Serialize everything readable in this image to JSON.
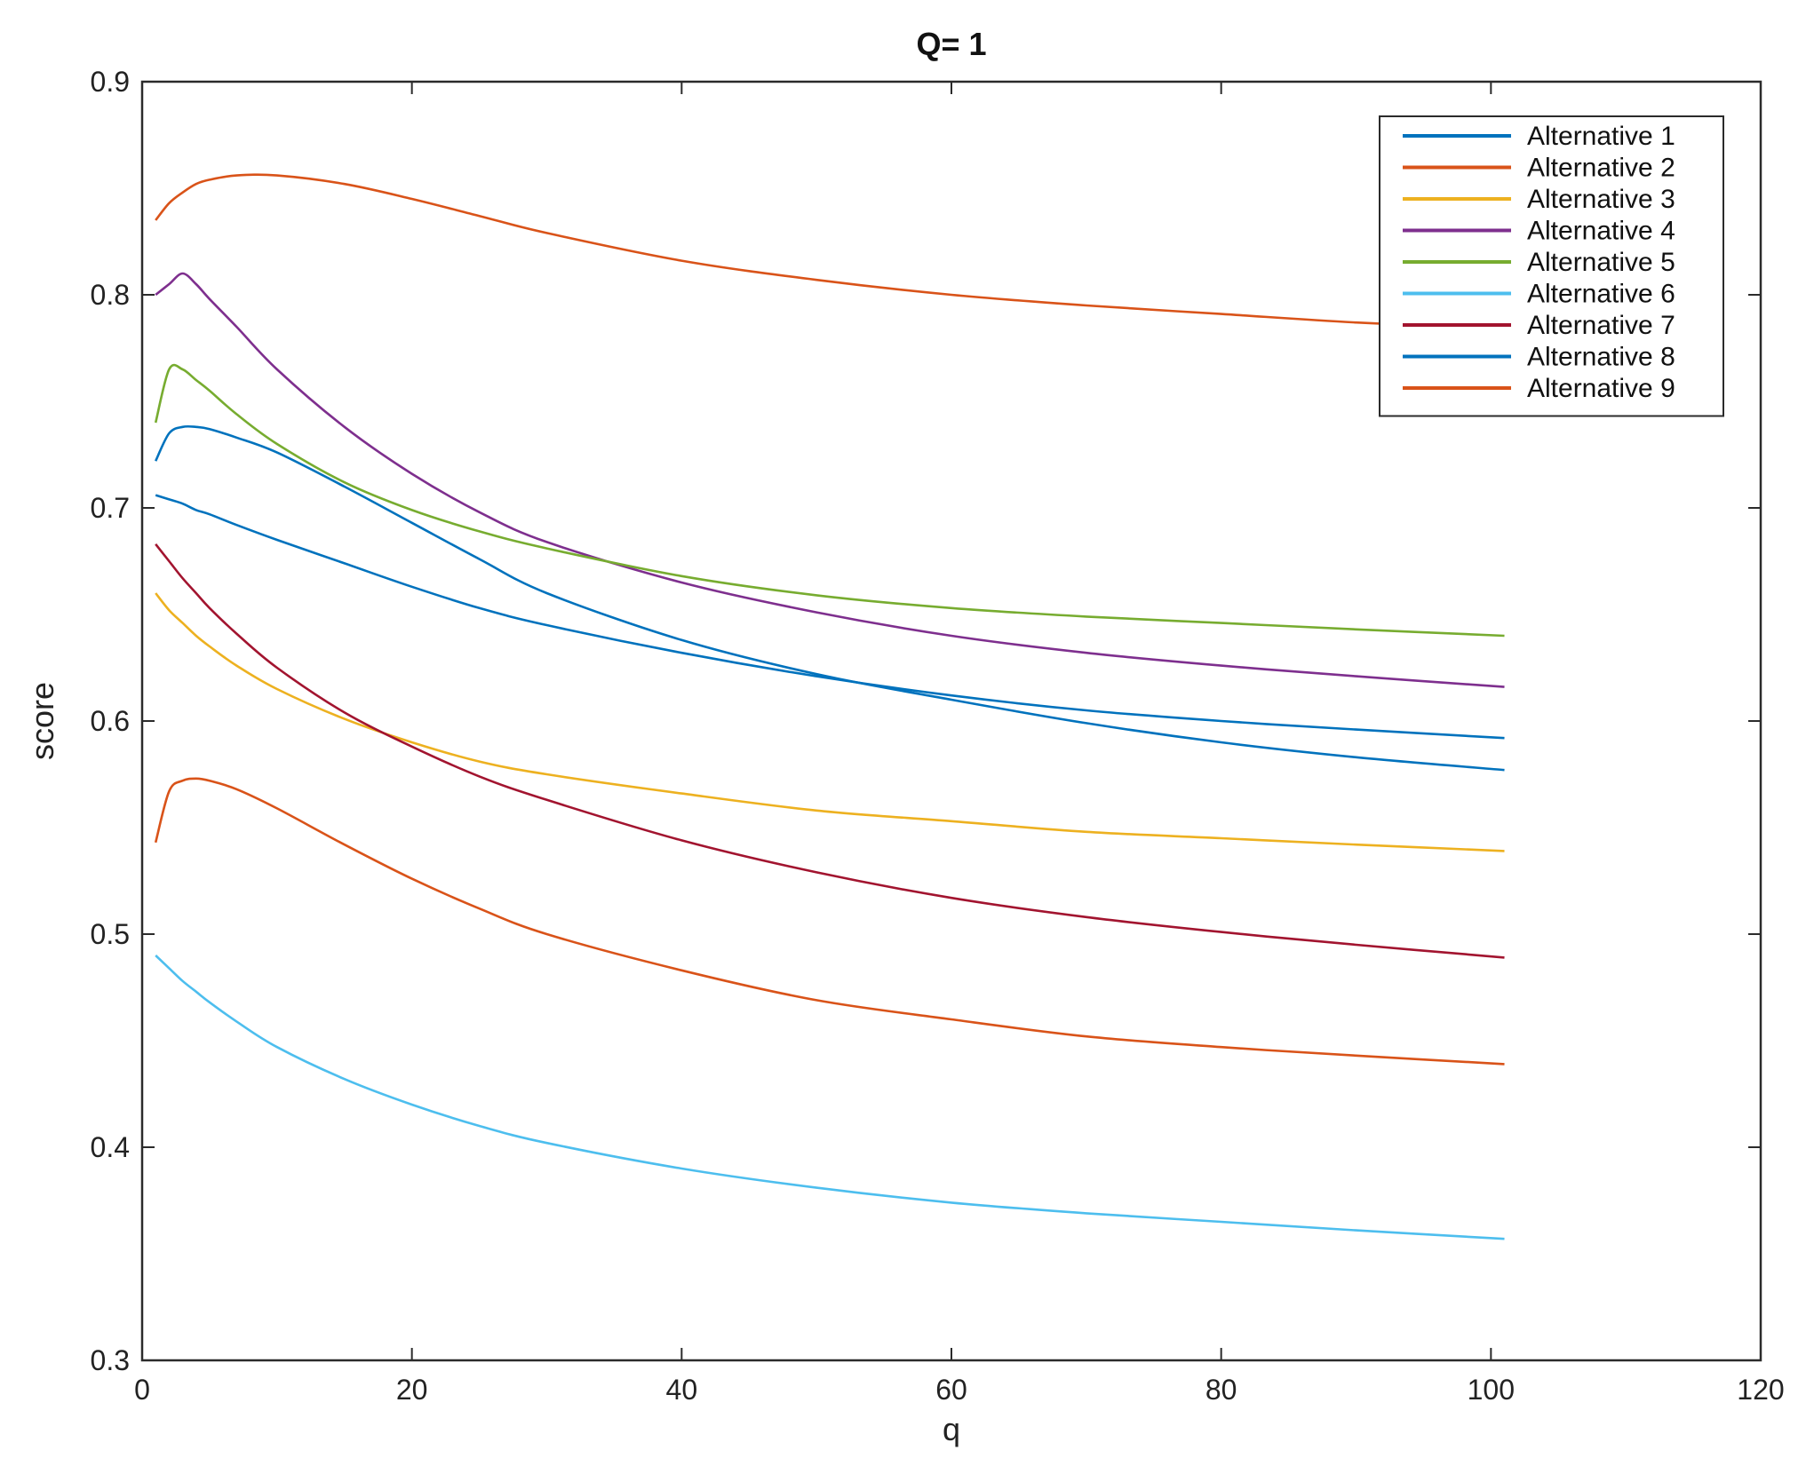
{
  "chart_data": {
    "type": "line",
    "title": "Q= 1",
    "xlabel": "q",
    "ylabel": "score",
    "xlim": [
      0,
      120
    ],
    "ylim": [
      0.3,
      0.9
    ],
    "xticks": [
      0,
      20,
      40,
      60,
      80,
      100,
      120
    ],
    "yticks": [
      0.3,
      0.4,
      0.5,
      0.6,
      0.7,
      0.8,
      0.9
    ],
    "xtick_labels": [
      "0",
      "20",
      "40",
      "60",
      "80",
      "100",
      "120"
    ],
    "ytick_labels": [
      "0.3",
      "0.4",
      "0.5",
      "0.6",
      "0.7",
      "0.8",
      "0.9"
    ],
    "grid": false,
    "legend_position": "top-right",
    "x": [
      1,
      2,
      3,
      4,
      5,
      7,
      10,
      15,
      20,
      25,
      30,
      40,
      50,
      60,
      70,
      80,
      90,
      101
    ],
    "series": [
      {
        "name": "Alternative 1",
        "color": "#0072BD",
        "values": [
          0.706,
          0.704,
          0.702,
          0.699,
          0.697,
          0.692,
          0.685,
          0.674,
          0.663,
          0.653,
          0.645,
          0.632,
          0.621,
          0.612,
          0.605,
          0.6,
          0.596,
          0.592
        ]
      },
      {
        "name": "Alternative 2",
        "color": "#D95319",
        "values": [
          0.543,
          0.567,
          0.572,
          0.573,
          0.572,
          0.568,
          0.559,
          0.542,
          0.526,
          0.512,
          0.5,
          0.483,
          0.469,
          0.46,
          0.452,
          0.447,
          0.443,
          0.439
        ]
      },
      {
        "name": "Alternative 3",
        "color": "#EDB120",
        "values": [
          0.66,
          0.652,
          0.646,
          0.64,
          0.635,
          0.626,
          0.615,
          0.601,
          0.59,
          0.581,
          0.575,
          0.566,
          0.558,
          0.553,
          0.548,
          0.545,
          0.542,
          0.539
        ]
      },
      {
        "name": "Alternative 4",
        "color": "#7E2F8E",
        "values": [
          0.8,
          0.805,
          0.81,
          0.805,
          0.798,
          0.785,
          0.765,
          0.738,
          0.716,
          0.698,
          0.684,
          0.665,
          0.651,
          0.64,
          0.632,
          0.626,
          0.621,
          0.616
        ]
      },
      {
        "name": "Alternative 5",
        "color": "#77AC30",
        "values": [
          0.74,
          0.765,
          0.765,
          0.76,
          0.755,
          0.744,
          0.73,
          0.712,
          0.699,
          0.689,
          0.681,
          0.668,
          0.659,
          0.653,
          0.649,
          0.646,
          0.643,
          0.64
        ]
      },
      {
        "name": "Alternative 6",
        "color": "#4DBEEE",
        "values": [
          0.49,
          0.484,
          0.478,
          0.473,
          0.468,
          0.459,
          0.447,
          0.432,
          0.42,
          0.41,
          0.402,
          0.39,
          0.381,
          0.374,
          0.369,
          0.365,
          0.361,
          0.357
        ]
      },
      {
        "name": "Alternative 7",
        "color": "#A2142F",
        "values": [
          0.683,
          0.675,
          0.667,
          0.66,
          0.653,
          0.641,
          0.625,
          0.604,
          0.588,
          0.574,
          0.563,
          0.544,
          0.529,
          0.517,
          0.508,
          0.501,
          0.495,
          0.489
        ]
      },
      {
        "name": "Alternative 8",
        "color": "#0072BD",
        "values": [
          0.722,
          0.735,
          0.738,
          0.738,
          0.737,
          0.733,
          0.726,
          0.71,
          0.693,
          0.676,
          0.66,
          0.638,
          0.622,
          0.61,
          0.599,
          0.59,
          0.583,
          0.577
        ]
      },
      {
        "name": "Alternative 9",
        "color": "#D95319",
        "values": [
          0.835,
          0.843,
          0.848,
          0.852,
          0.854,
          0.856,
          0.856,
          0.852,
          0.845,
          0.837,
          0.829,
          0.816,
          0.807,
          0.8,
          0.795,
          0.791,
          0.787,
          0.784
        ]
      }
    ]
  }
}
